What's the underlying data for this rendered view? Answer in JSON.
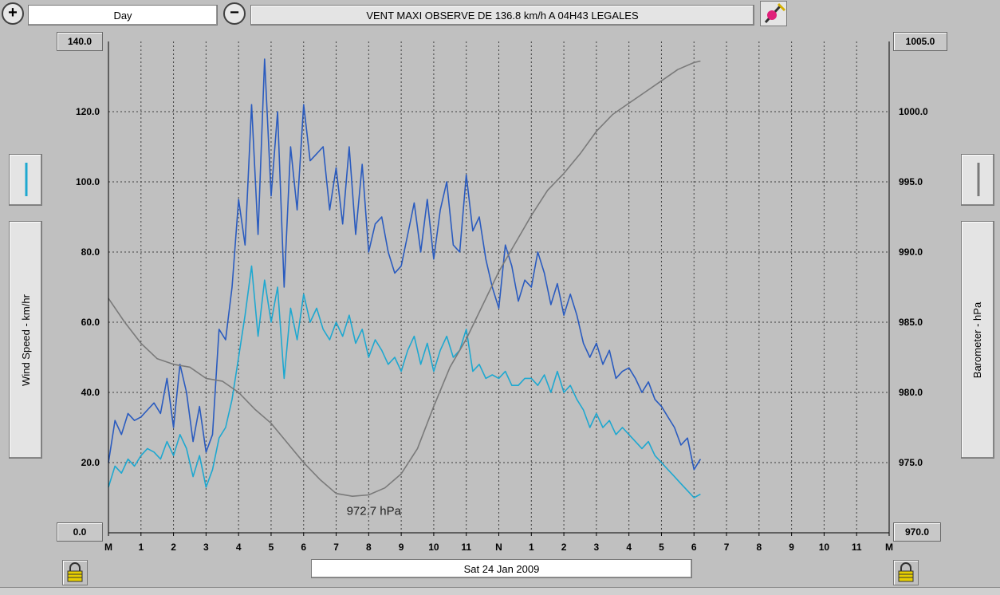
{
  "toolbar": {
    "zoom_in_icon": "zoom-in-icon",
    "period": "Day",
    "zoom_out_icon": "zoom-out-icon",
    "title": "VENT MAXI OBSERVE DE 136.8 km/h A 04H43 LEGALES",
    "tools_icon": "paint-tool-icon"
  },
  "left_panel": {
    "axis_label": "Wind Speed - km/hr",
    "top_value": "140.0",
    "bottom_value": "0.0"
  },
  "right_panel": {
    "axis_label": "Barometer - hPa",
    "top_value": "1005.0",
    "bottom_value": "970.0"
  },
  "footer": {
    "date": "Sat 24 Jan 2009"
  },
  "colors": {
    "gust": "#2a5bbf",
    "average": "#1ea8d0",
    "barometer": "#7a7a7a",
    "plot_bg": "#c0c0c0"
  },
  "chart_data": {
    "type": "line",
    "title": "VENT MAXI OBSERVE DE 136.8 km/h A 04H43 LEGALES",
    "xlabel": "",
    "ylabel": "Wind Speed - km/hr",
    "y2label": "Barometer - hPa",
    "x_ticks": [
      "M",
      "1",
      "2",
      "3",
      "4",
      "5",
      "6",
      "7",
      "8",
      "9",
      "10",
      "11",
      "N",
      "1",
      "2",
      "3",
      "4",
      "5",
      "6",
      "7",
      "8",
      "9",
      "10",
      "11",
      "M"
    ],
    "xlim": [
      0,
      24
    ],
    "ylim": [
      0,
      140
    ],
    "y_ticks": [
      "0.0",
      "20.0",
      "40.0",
      "60.0",
      "80.0",
      "100.0",
      "120.0",
      "140.0"
    ],
    "y2lim": [
      970,
      1005
    ],
    "y2_ticks": [
      "970.0",
      "975.0",
      "980.0",
      "985.0",
      "990.0",
      "995.0",
      "1000.0",
      "1005.0"
    ],
    "grid": true,
    "annotation": {
      "text": "972.7 hPa",
      "x": 8.3,
      "y": 972.7
    },
    "series": [
      {
        "axis": "left",
        "x": [
          0,
          0.2,
          0.4,
          0.6,
          0.8,
          1,
          1.2,
          1.4,
          1.6,
          1.8,
          2,
          2.2,
          2.4,
          2.6,
          2.8,
          3,
          3.2,
          3.4,
          3.6,
          3.8,
          4,
          4.2,
          4.4,
          4.6,
          4.8,
          5,
          5.2,
          5.4,
          5.6,
          5.8,
          6,
          6.2,
          6.4,
          6.6,
          6.8,
          7,
          7.2,
          7.4,
          7.6,
          7.8,
          8,
          8.2,
          8.4,
          8.6,
          8.8,
          9,
          9.2,
          9.4,
          9.6,
          9.8,
          10,
          10.2,
          10.4,
          10.6,
          10.8,
          11,
          11.2,
          11.4,
          11.6,
          11.8,
          12,
          12.2,
          12.4,
          12.6,
          12.8,
          13,
          13.2,
          13.4,
          13.6,
          13.8,
          14,
          14.2,
          14.4,
          14.6,
          14.8,
          15,
          15.2,
          15.4,
          15.6,
          15.8,
          16,
          16.2,
          16.4,
          16.6,
          16.8,
          17,
          17.2,
          17.4,
          17.6,
          17.8,
          18,
          18.2
        ],
        "values": [
          20,
          32,
          28,
          34,
          32,
          33,
          35,
          37,
          34,
          44,
          30,
          48,
          40,
          26,
          36,
          23,
          28,
          58,
          55,
          70,
          95,
          82,
          122,
          85,
          135,
          96,
          120,
          70,
          110,
          92,
          122,
          106,
          108,
          110,
          92,
          104,
          88,
          110,
          85,
          105,
          80,
          88,
          90,
          80,
          74,
          76,
          85,
          94,
          80,
          95,
          78,
          92,
          100,
          82,
          80,
          102,
          86,
          90,
          78,
          70,
          64,
          82,
          76,
          66,
          72,
          70,
          80,
          74,
          65,
          71,
          62,
          68,
          62,
          54,
          50,
          54,
          48,
          52,
          44,
          46,
          47,
          44,
          40,
          43,
          38,
          36,
          33,
          30,
          25,
          27,
          18,
          21
        ]
      },
      {
        "axis": "left",
        "x": [
          0,
          0.2,
          0.4,
          0.6,
          0.8,
          1,
          1.2,
          1.4,
          1.6,
          1.8,
          2,
          2.2,
          2.4,
          2.6,
          2.8,
          3,
          3.2,
          3.4,
          3.6,
          3.8,
          4,
          4.2,
          4.4,
          4.6,
          4.8,
          5,
          5.2,
          5.4,
          5.6,
          5.8,
          6,
          6.2,
          6.4,
          6.6,
          6.8,
          7,
          7.2,
          7.4,
          7.6,
          7.8,
          8,
          8.2,
          8.4,
          8.6,
          8.8,
          9,
          9.2,
          9.4,
          9.6,
          9.8,
          10,
          10.2,
          10.4,
          10.6,
          10.8,
          11,
          11.2,
          11.4,
          11.6,
          11.8,
          12,
          12.2,
          12.4,
          12.6,
          12.8,
          13,
          13.2,
          13.4,
          13.6,
          13.8,
          14,
          14.2,
          14.4,
          14.6,
          14.8,
          15,
          15.2,
          15.4,
          15.6,
          15.8,
          16,
          16.2,
          16.4,
          16.6,
          16.8,
          17,
          17.2,
          17.4,
          17.6,
          17.8,
          18,
          18.2
        ],
        "values": [
          13,
          19,
          17,
          21,
          19,
          22,
          24,
          23,
          21,
          26,
          22,
          28,
          24,
          16,
          22,
          13,
          18,
          27,
          30,
          38,
          50,
          62,
          76,
          56,
          72,
          60,
          70,
          44,
          64,
          55,
          68,
          60,
          64,
          58,
          55,
          60,
          56,
          62,
          54,
          58,
          50,
          55,
          52,
          48,
          50,
          46,
          52,
          56,
          48,
          54,
          46,
          52,
          56,
          50,
          52,
          58,
          46,
          48,
          44,
          45,
          44,
          46,
          42,
          42,
          44,
          44,
          42,
          45,
          40,
          46,
          40,
          42,
          38,
          35,
          30,
          34,
          30,
          32,
          28,
          30,
          28,
          26,
          24,
          26,
          22,
          20,
          18,
          16,
          14,
          12,
          10,
          11
        ]
      },
      {
        "axis": "right",
        "x": [
          0,
          0.5,
          1,
          1.5,
          2,
          2.5,
          3,
          3.5,
          4,
          4.5,
          5,
          5.5,
          6,
          6.5,
          7,
          7.5,
          8,
          8.5,
          9,
          9.5,
          10,
          10.5,
          11,
          11.5,
          12,
          12.5,
          13,
          13.5,
          14,
          14.5,
          15,
          15.5,
          16,
          16.5,
          17,
          17.5,
          18,
          18.2
        ],
        "values": [
          986.7,
          985.0,
          983.5,
          982.4,
          982.0,
          981.8,
          981.0,
          980.8,
          980.0,
          978.8,
          977.8,
          976.4,
          975.0,
          973.8,
          972.8,
          972.6,
          972.7,
          973.2,
          974.2,
          976.0,
          979.0,
          981.8,
          983.8,
          986.2,
          988.6,
          990.6,
          992.6,
          994.4,
          995.6,
          997.0,
          998.6,
          999.8,
          1000.6,
          1001.4,
          1002.2,
          1003.0,
          1003.5,
          1003.6
        ]
      }
    ]
  }
}
